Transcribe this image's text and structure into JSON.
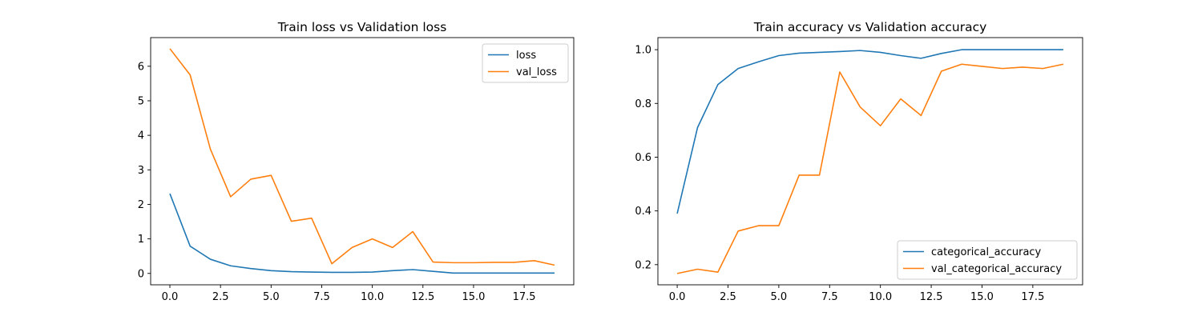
{
  "chart_data": [
    {
      "type": "line",
      "title": "Train loss vs Validation loss",
      "xlabel": "",
      "ylabel": "",
      "xlim": [
        -0.95,
        19.95
      ],
      "ylim": [
        -0.33,
        6.83
      ],
      "xticks": [
        0.0,
        2.5,
        5.0,
        7.5,
        10.0,
        12.5,
        15.0,
        17.5
      ],
      "xtick_labels": [
        "0.0",
        "2.5",
        "5.0",
        "7.5",
        "10.0",
        "12.5",
        "15.0",
        "17.5"
      ],
      "yticks": [
        0,
        1,
        2,
        3,
        4,
        5,
        6
      ],
      "ytick_labels": [
        "0",
        "1",
        "2",
        "3",
        "4",
        "5",
        "6"
      ],
      "legend_position": "top-right",
      "x": [
        0,
        1,
        2,
        3,
        4,
        5,
        6,
        7,
        8,
        9,
        10,
        11,
        12,
        13,
        14,
        15,
        16,
        17,
        18,
        19
      ],
      "series": [
        {
          "name": "loss",
          "color": "#1f77b4",
          "values": [
            2.31,
            0.79,
            0.41,
            0.22,
            0.14,
            0.08,
            0.05,
            0.04,
            0.03,
            0.03,
            0.04,
            0.08,
            0.11,
            0.06,
            0.01,
            0.01,
            0.01,
            0.01,
            0.01,
            0.01
          ]
        },
        {
          "name": "val_loss",
          "color": "#ff7f0e",
          "values": [
            6.51,
            5.75,
            3.6,
            2.22,
            2.73,
            2.84,
            1.51,
            1.6,
            0.28,
            0.75,
            1.0,
            0.75,
            1.21,
            0.33,
            0.31,
            0.31,
            0.32,
            0.32,
            0.37,
            0.24
          ]
        }
      ]
    },
    {
      "type": "line",
      "title": "Train accuracy vs Validation accuracy",
      "xlabel": "",
      "ylabel": "",
      "xlim": [
        -0.95,
        19.95
      ],
      "ylim": [
        0.125,
        1.045
      ],
      "xticks": [
        0.0,
        2.5,
        5.0,
        7.5,
        10.0,
        12.5,
        15.0,
        17.5
      ],
      "xtick_labels": [
        "0.0",
        "2.5",
        "5.0",
        "7.5",
        "10.0",
        "12.5",
        "15.0",
        "17.5"
      ],
      "yticks": [
        0.2,
        0.4,
        0.6,
        0.8,
        1.0
      ],
      "ytick_labels": [
        "0.2",
        "0.4",
        "0.6",
        "0.8",
        "1.0"
      ],
      "legend_position": "bottom-right",
      "x": [
        0,
        1,
        2,
        3,
        4,
        5,
        6,
        7,
        8,
        9,
        10,
        11,
        12,
        13,
        14,
        15,
        16,
        17,
        18,
        19
      ],
      "series": [
        {
          "name": "categorical_accuracy",
          "color": "#1f77b4",
          "values": [
            0.39,
            0.71,
            0.87,
            0.93,
            0.955,
            0.978,
            0.987,
            0.99,
            0.993,
            0.997,
            0.99,
            0.978,
            0.968,
            0.986,
            1.0,
            1.0,
            1.0,
            1.0,
            1.0,
            1.0
          ]
        },
        {
          "name": "val_categorical_accuracy",
          "color": "#ff7f0e",
          "values": [
            0.167,
            0.183,
            0.172,
            0.325,
            0.345,
            0.345,
            0.533,
            0.533,
            0.917,
            0.787,
            0.717,
            0.817,
            0.755,
            0.92,
            0.946,
            0.938,
            0.93,
            0.935,
            0.93,
            0.946
          ]
        }
      ]
    }
  ]
}
